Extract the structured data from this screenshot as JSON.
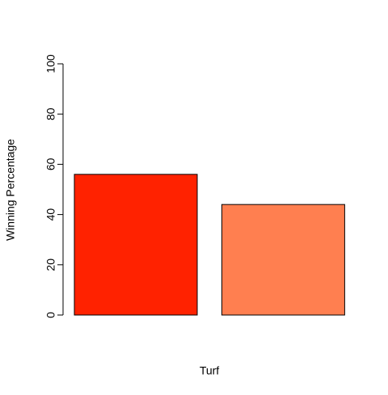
{
  "chart_data": {
    "type": "bar",
    "xlabel": "Turf",
    "ylabel": "Winning Percentage",
    "categories": [
      null,
      null
    ],
    "values": [
      56,
      44
    ],
    "colors": [
      "#ff2200",
      "#ff7f50"
    ],
    "ylim": [
      0,
      100
    ],
    "yticks": [
      0,
      20,
      40,
      60,
      80,
      100
    ]
  }
}
